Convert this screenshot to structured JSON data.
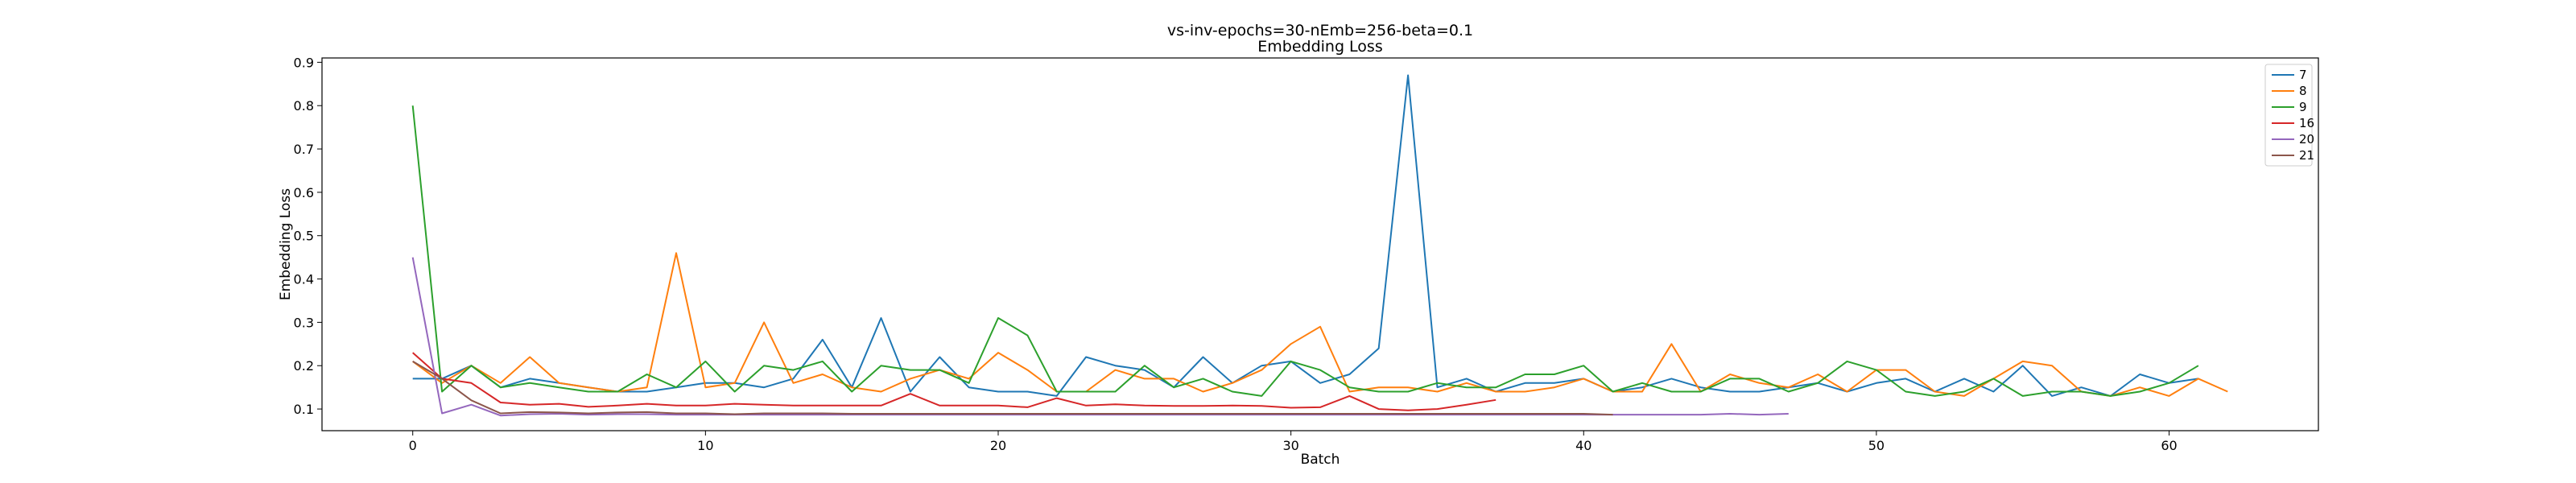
{
  "chart_data": {
    "type": "line",
    "title": "vs-inv-epochs=30-nEmb=256-beta=0.1",
    "subtitle": "Embedding Loss",
    "xlabel": "Batch",
    "ylabel": "Embedding Loss",
    "xlim": [
      -3.1,
      65.1
    ],
    "ylim": [
      0.05,
      0.91
    ],
    "xticks": [
      0,
      10,
      20,
      30,
      40,
      50,
      60
    ],
    "yticks": [
      0.1,
      0.2,
      0.3,
      0.4,
      0.5,
      0.6,
      0.7,
      0.8,
      0.9
    ],
    "grid": false,
    "legend_position": "top-right",
    "series": [
      {
        "name": "7",
        "color": "#1f77b4",
        "values": [
          0.17,
          0.17,
          0.2,
          0.15,
          0.17,
          0.16,
          0.15,
          0.14,
          0.14,
          0.15,
          0.16,
          0.16,
          0.15,
          0.17,
          0.26,
          0.15,
          0.31,
          0.14,
          0.22,
          0.15,
          0.14,
          0.14,
          0.13,
          0.22,
          0.2,
          0.19,
          0.15,
          0.22,
          0.16,
          0.2,
          0.21,
          0.16,
          0.18,
          0.24,
          0.87,
          0.15,
          0.17,
          0.14,
          0.16,
          0.16,
          0.17,
          0.14,
          0.15,
          0.17,
          0.15,
          0.14,
          0.14,
          0.15,
          0.16,
          0.14,
          0.16,
          0.17,
          0.14,
          0.17,
          0.14,
          0.2,
          0.13,
          0.15,
          0.13,
          0.18,
          0.16,
          0.17
        ]
      },
      {
        "name": "8",
        "color": "#ff7f0e",
        "values": [
          0.21,
          0.16,
          0.2,
          0.16,
          0.22,
          0.16,
          0.15,
          0.14,
          0.15,
          0.46,
          0.15,
          0.16,
          0.3,
          0.16,
          0.18,
          0.15,
          0.14,
          0.17,
          0.19,
          0.17,
          0.23,
          0.19,
          0.14,
          0.14,
          0.19,
          0.17,
          0.17,
          0.14,
          0.16,
          0.19,
          0.25,
          0.29,
          0.14,
          0.15,
          0.15,
          0.14,
          0.16,
          0.14,
          0.14,
          0.15,
          0.17,
          0.14,
          0.14,
          0.25,
          0.14,
          0.18,
          0.16,
          0.15,
          0.18,
          0.14,
          0.19,
          0.19,
          0.14,
          0.13,
          0.17,
          0.21,
          0.2,
          0.14,
          0.13,
          0.15,
          0.13,
          0.17,
          0.14
        ]
      },
      {
        "name": "9",
        "color": "#2ca02c",
        "values": [
          0.8,
          0.14,
          0.2,
          0.15,
          0.16,
          0.15,
          0.14,
          0.14,
          0.18,
          0.15,
          0.21,
          0.14,
          0.2,
          0.19,
          0.21,
          0.14,
          0.2,
          0.19,
          0.19,
          0.16,
          0.31,
          0.27,
          0.14,
          0.14,
          0.14,
          0.2,
          0.15,
          0.17,
          0.14,
          0.13,
          0.21,
          0.19,
          0.15,
          0.14,
          0.14,
          0.16,
          0.15,
          0.15,
          0.18,
          0.18,
          0.2,
          0.14,
          0.16,
          0.14,
          0.14,
          0.17,
          0.17,
          0.14,
          0.16,
          0.21,
          0.19,
          0.14,
          0.13,
          0.14,
          0.17,
          0.13,
          0.14,
          0.14,
          0.13,
          0.14,
          0.16,
          0.2
        ]
      },
      {
        "name": "16",
        "color": "#d62728",
        "values": [
          0.23,
          0.17,
          0.16,
          0.115,
          0.11,
          0.112,
          0.105,
          0.108,
          0.112,
          0.108,
          0.108,
          0.112,
          0.11,
          0.108,
          0.108,
          0.108,
          0.108,
          0.135,
          0.108,
          0.108,
          0.108,
          0.104,
          0.125,
          0.108,
          0.111,
          0.108,
          0.107,
          0.107,
          0.108,
          0.107,
          0.103,
          0.104,
          0.13,
          0.1,
          0.097,
          0.1,
          0.11,
          0.121
        ]
      },
      {
        "name": "20",
        "color": "#9467bd",
        "values": [
          0.45,
          0.09,
          0.11,
          0.085,
          0.088,
          0.089,
          0.087,
          0.088,
          0.088,
          0.087,
          0.087,
          0.087,
          0.087,
          0.087,
          0.087,
          0.087,
          0.087,
          0.087,
          0.087,
          0.087,
          0.087,
          0.087,
          0.087,
          0.087,
          0.087,
          0.087,
          0.087,
          0.087,
          0.087,
          0.087,
          0.087,
          0.087,
          0.087,
          0.087,
          0.087,
          0.087,
          0.087,
          0.087,
          0.087,
          0.087,
          0.087,
          0.087,
          0.087,
          0.087,
          0.087,
          0.089,
          0.087,
          0.089
        ]
      },
      {
        "name": "21",
        "color": "#8c564b",
        "values": [
          0.21,
          0.17,
          0.12,
          0.09,
          0.093,
          0.092,
          0.09,
          0.092,
          0.093,
          0.09,
          0.09,
          0.088,
          0.09,
          0.09,
          0.09,
          0.089,
          0.089,
          0.089,
          0.089,
          0.089,
          0.089,
          0.089,
          0.089,
          0.089,
          0.089,
          0.089,
          0.089,
          0.089,
          0.089,
          0.089,
          0.089,
          0.089,
          0.089,
          0.089,
          0.089,
          0.089,
          0.089,
          0.089,
          0.089,
          0.089,
          0.089,
          0.087
        ]
      }
    ]
  }
}
